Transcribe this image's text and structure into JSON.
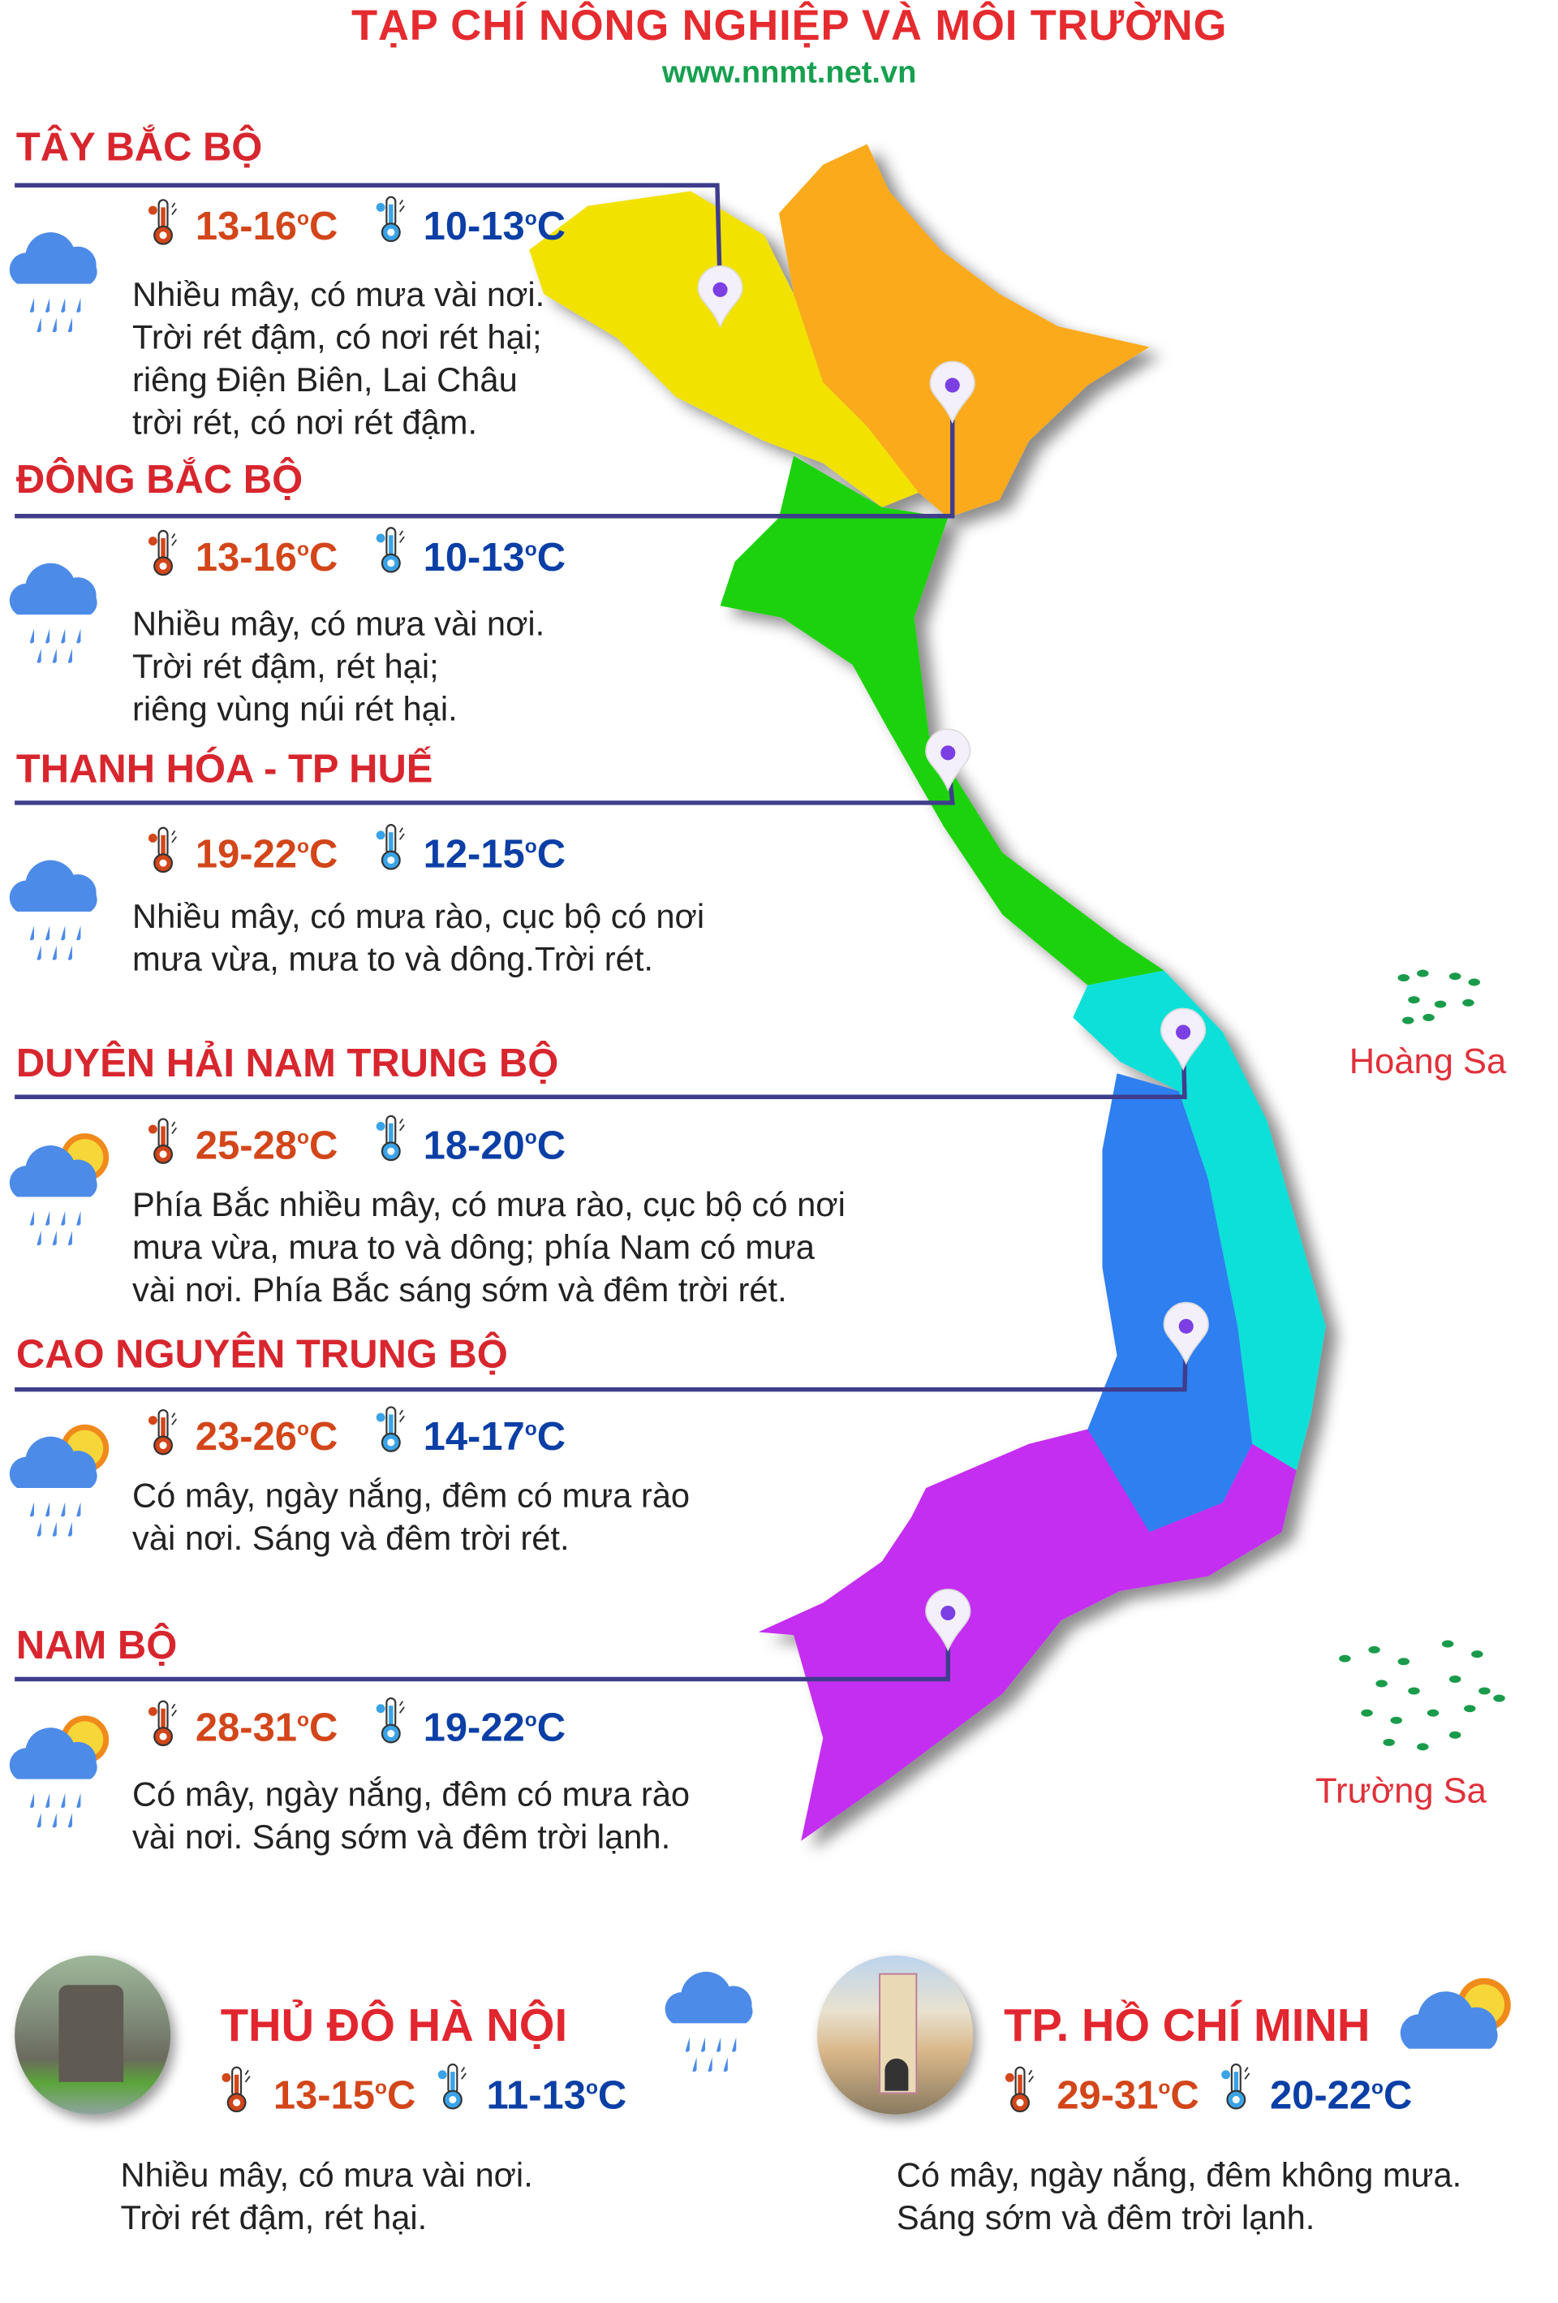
{
  "header": {
    "title": "TẠP CHÍ NÔNG NGHIỆP VÀ MÔI TRƯỜNG",
    "url": "www.nnmt.net.vn"
  },
  "colors": {
    "heading": "#d8262e",
    "hot": "#d2461a",
    "cold": "#0b3fa6",
    "line": "#3f3d8c",
    "pin": "#7b3fe4"
  },
  "regions": [
    {
      "name": "TÂY BẮC BỘ",
      "hot": "13-16",
      "cold": "10-13",
      "unit": "0C",
      "icon": "rain-cloud-icon",
      "map_color": "#f2e206",
      "desc": [
        "Nhiều mây, có mưa vài nơi.",
        "Trời rét đậm, có nơi rét hại;",
        "riêng Điện Biên, Lai Châu",
        "trời rét, có nơi rét đậm."
      ]
    },
    {
      "name": "ĐÔNG BẮC BỘ",
      "hot": "13-16",
      "cold": "10-13",
      "unit": "0C",
      "icon": "rain-cloud-icon",
      "map_color": "#fbaa1c",
      "desc": [
        "Nhiều mây, có mưa vài nơi.",
        "Trời rét đậm, rét hại;",
        "riêng vùng núi rét hại."
      ]
    },
    {
      "name": "THANH HÓA - TP HUẾ",
      "hot": "19-22",
      "cold": "12-15",
      "unit": "0C",
      "icon": "rain-cloud-icon",
      "map_color": "#1fd20a",
      "desc": [
        "Nhiều mây, có mưa rào, cục bộ có nơi",
        "mưa vừa, mưa to và dông.Trời rét."
      ]
    },
    {
      "name": "DUYÊN HẢI NAM TRUNG BỘ",
      "hot": "25-28",
      "cold": "18-20",
      "unit": "0C",
      "icon": "sun-cloud-rain-icon",
      "map_color": "#0fe0d8",
      "desc": [
        "Phía Bắc nhiều mây, có mưa rào, cục bộ có nơi",
        "mưa vừa, mưa to và dông; phía Nam có mưa",
        "vài nơi. Phía Bắc sáng sớm và đêm trời rét."
      ]
    },
    {
      "name": "CAO NGUYÊN TRUNG BỘ",
      "hot": "23-26",
      "cold": "14-17",
      "unit": "0C",
      "icon": "sun-cloud-rain-icon",
      "map_color": "#2f7ff0",
      "desc": [
        "Có mây, ngày nắng, đêm có mưa rào",
        "vài nơi. Sáng và đêm trời rét."
      ]
    },
    {
      "name": "NAM BỘ",
      "hot": "28-31",
      "cold": "19-22",
      "unit": "0C",
      "icon": "sun-cloud-rain-icon",
      "map_color": "#c42ff0",
      "desc": [
        "Có mây, ngày nắng, đêm có mưa rào",
        "vài nơi. Sáng sớm và đêm trời lạnh."
      ]
    }
  ],
  "islands": {
    "hoang_sa": "Hoàng Sa",
    "truong_sa": "Trường Sa"
  },
  "cities": [
    {
      "name": "THỦ ĐÔ HÀ NỘI",
      "hot": "13-15",
      "cold": "11-13",
      "unit": "0C",
      "icon": "rain-cloud-icon",
      "photo": "turtle-tower-photo",
      "desc": [
        "Nhiều mây, có mưa vài nơi.",
        "Trời rét đậm, rét hại."
      ]
    },
    {
      "name": "TP. HỒ CHÍ MINH",
      "hot": "29-31",
      "cold": "20-22",
      "unit": "0C",
      "icon": "sun-cloud-icon",
      "photo": "ben-thanh-market-photo",
      "desc": [
        "Có mây, ngày nắng, đêm không mưa.",
        "Sáng sớm và đêm trời lạnh."
      ]
    }
  ]
}
